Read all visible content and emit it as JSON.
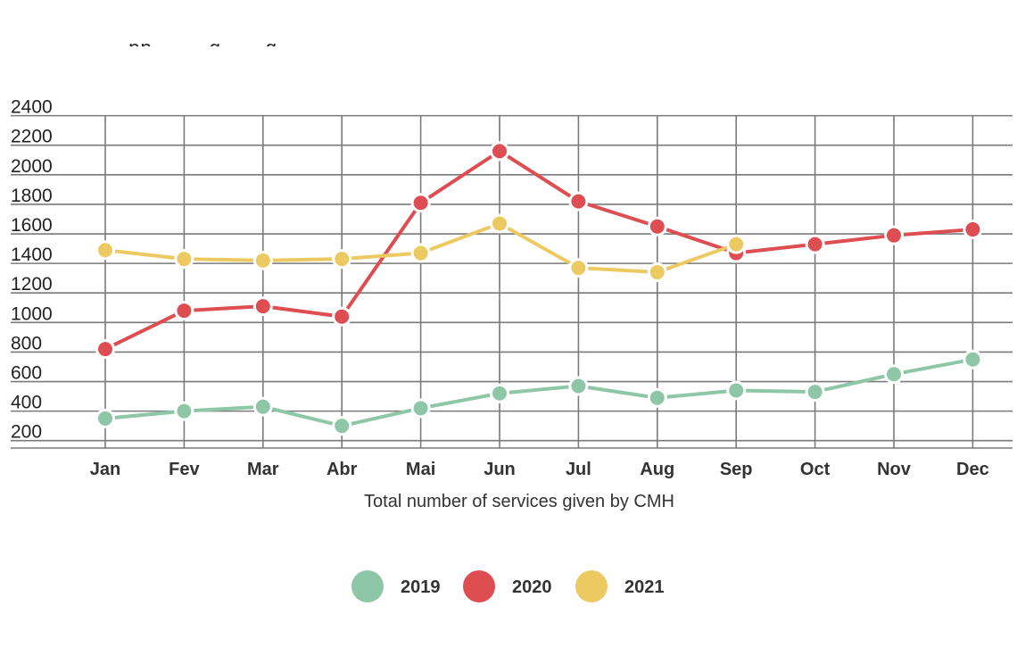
{
  "title_fragment": ". pp . . . . g . . . g . , . , .",
  "chart_data": {
    "type": "line",
    "categories": [
      "Jan",
      "Fev",
      "Mar",
      "Abr",
      "Mai",
      "Jun",
      "Jul",
      "Aug",
      "Sep",
      "Oct",
      "Nov",
      "Dec"
    ],
    "series": [
      {
        "name": "2019",
        "color": "#8ec6a8",
        "values": [
          350,
          400,
          430,
          300,
          420,
          520,
          570,
          490,
          540,
          530,
          650,
          750
        ]
      },
      {
        "name": "2020",
        "color": "#dd4d52",
        "values": [
          820,
          1080,
          1110,
          1040,
          1810,
          2160,
          1820,
          1650,
          1470,
          1530,
          1590,
          1630
        ]
      },
      {
        "name": "2021",
        "color": "#edc962",
        "values": [
          1490,
          1430,
          1420,
          1430,
          1470,
          1670,
          1370,
          1340,
          1530,
          null,
          null,
          null
        ]
      }
    ],
    "xlabel": "Total number of services given by CMH",
    "ylabel": "",
    "yticks": [
      200,
      400,
      600,
      800,
      1000,
      1200,
      1400,
      1600,
      1800,
      2000,
      2200,
      2400
    ],
    "ylim": [
      150,
      2400
    ],
    "grid": true,
    "legend": {
      "position": "bottom-center",
      "entries": [
        "2019",
        "2020",
        "2021"
      ]
    }
  }
}
